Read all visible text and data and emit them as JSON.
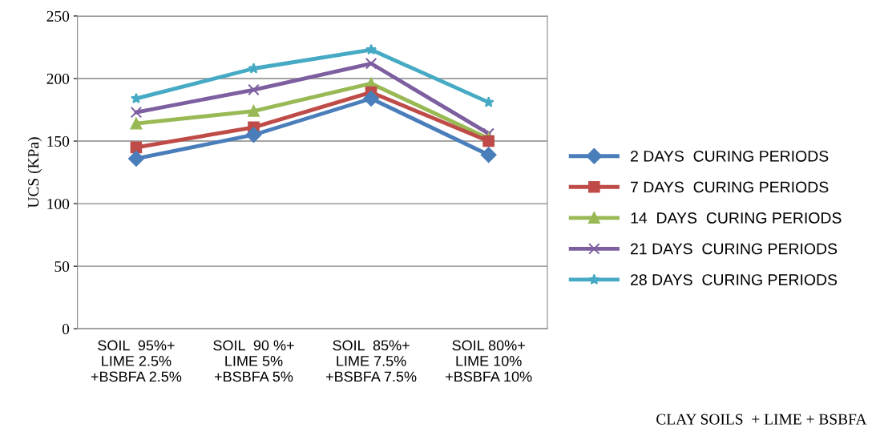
{
  "chart_data": {
    "type": "line",
    "ylabel": "UCS (KPa)",
    "categories": [
      "SOIL  95%+\nLIME 2.5%\n+BSBFA 2.5%",
      "SOIL  90 %+\nLIME 5%\n+BSBFA 5%",
      "SOIL  85%+\nLIME 7.5%\n+BSBFA 7.5%",
      "SOIL 80%+\nLIME 10%\n+BSBFA 10%"
    ],
    "series": [
      {
        "name": "2 DAYS  CURING PERIODS",
        "color": "#4a7ebb",
        "marker": "diamond",
        "values": [
          136,
          155,
          184,
          139
        ]
      },
      {
        "name": "7 DAYS  CURING PERIODS",
        "color": "#be4b48",
        "marker": "square",
        "values": [
          145,
          161,
          189,
          150
        ]
      },
      {
        "name": "14  DAYS  CURING PERIODS",
        "color": "#98b954",
        "marker": "triangle",
        "values": [
          164,
          174,
          196,
          152
        ]
      },
      {
        "name": "21 DAYS  CURING PERIODS",
        "color": "#7d5fa0",
        "marker": "cross",
        "values": [
          173,
          191,
          212,
          156
        ]
      },
      {
        "name": "28 DAYS  CURING PERIODS",
        "color": "#46aac5",
        "marker": "star",
        "values": [
          184,
          208,
          223,
          181
        ]
      }
    ],
    "ylim": [
      0,
      250
    ],
    "yticks": [
      0,
      50,
      100,
      150,
      200,
      250
    ],
    "grid": "y",
    "legend": "right",
    "annotations": [
      "CLAY SOILS  + LIME + BSBFA"
    ]
  }
}
